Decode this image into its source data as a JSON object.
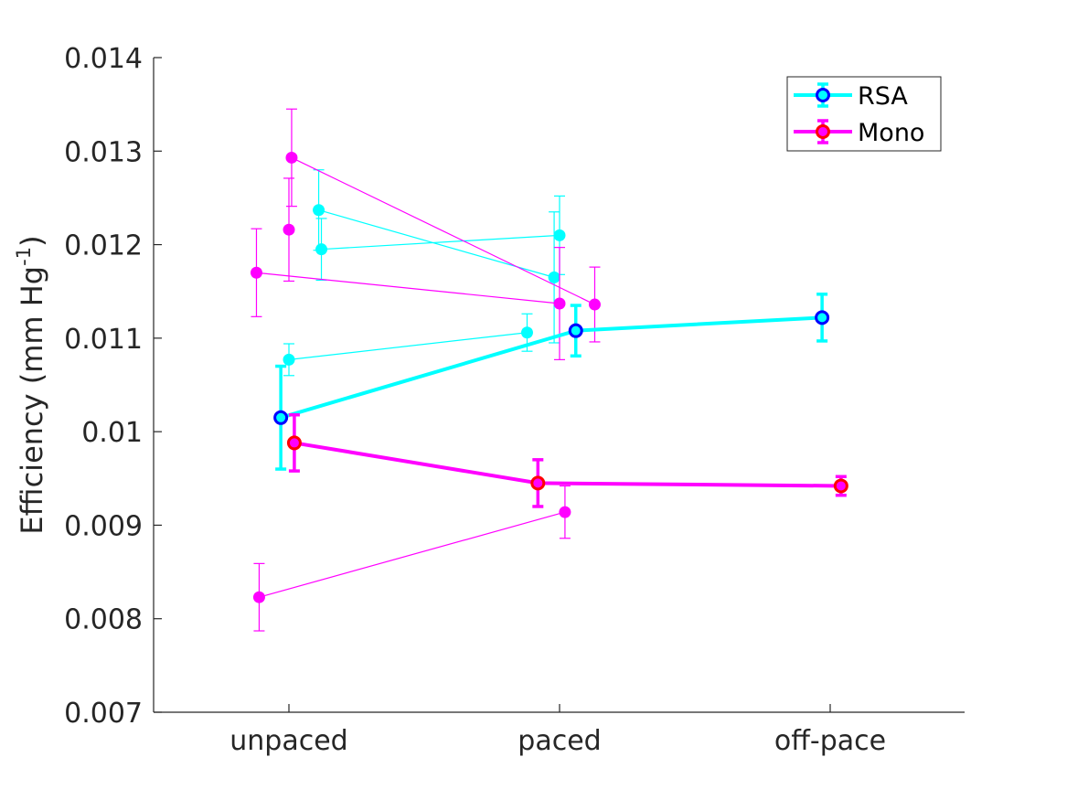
{
  "chart_data": {
    "type": "line",
    "title": "",
    "xlabel": "",
    "ylabel": "Efficiency (mm Hg",
    "ylabel_superscript": "-1",
    "ylabel_suffix": ")",
    "categories": [
      "unpaced",
      "paced",
      "off-pace"
    ],
    "ylim": [
      0.007,
      0.014
    ],
    "yticks": [
      "0.007",
      "0.008",
      "0.009",
      "0.01",
      "0.011",
      "0.012",
      "0.013",
      "0.014"
    ],
    "grid": false,
    "legend_position": "top-right",
    "legend": [
      {
        "name": "RSA",
        "color": "#00ffff",
        "marker_edge": "#0000ff"
      },
      {
        "name": "Mono",
        "color": "#ff00ff",
        "marker_edge": "#ff0000"
      }
    ],
    "series": [
      {
        "name": "RSA",
        "kind": "mean",
        "color": "#00ffff",
        "marker_edge": "#0000ff",
        "x": [
          -0.03,
          1.06,
          1.97
        ],
        "y": [
          0.01015,
          0.01108,
          0.01122
        ],
        "err": [
          0.00055,
          0.00027,
          0.00025
        ]
      },
      {
        "name": "Mono",
        "kind": "mean",
        "color": "#ff00ff",
        "marker_edge": "#ff0000",
        "x": [
          0.02,
          0.92,
          2.04
        ],
        "y": [
          0.00988,
          0.00945,
          0.00942
        ],
        "err": [
          0.0003,
          0.00025,
          0.0001
        ]
      },
      {
        "kind": "subject",
        "color": "#00ffff",
        "x": [
          0.11,
          0.98
        ],
        "y": [
          0.01237,
          0.01165
        ],
        "err": [
          0.00043,
          0.0007
        ]
      },
      {
        "kind": "subject",
        "color": "#00ffff",
        "x": [
          0.12,
          1.0
        ],
        "y": [
          0.01195,
          0.0121
        ],
        "err": [
          0.00033,
          0.00042
        ]
      },
      {
        "kind": "subject",
        "color": "#00ffff",
        "x": [
          0.0,
          0.88
        ],
        "y": [
          0.01077,
          0.01106
        ],
        "err": [
          0.00017,
          0.0002
        ]
      },
      {
        "kind": "subject",
        "color": "#ff00ff",
        "x": [
          0.01,
          1.13
        ],
        "y": [
          0.01293,
          0.01136
        ],
        "err": [
          0.00052,
          0.0004
        ]
      },
      {
        "kind": "subject",
        "color": "#ff00ff",
        "x": [
          -0.12,
          1.0
        ],
        "y": [
          0.0117,
          0.01137
        ],
        "err": [
          0.00047,
          0.0006
        ]
      },
      {
        "kind": "subject",
        "color": "#ff00ff",
        "x": [
          0.0
        ],
        "y": [
          0.01216
        ],
        "err": [
          0.00055
        ]
      },
      {
        "kind": "subject",
        "color": "#ff00ff",
        "x": [
          -0.11,
          1.02
        ],
        "y": [
          0.00823,
          0.00914
        ],
        "err": [
          0.00036,
          0.00028
        ]
      }
    ]
  }
}
